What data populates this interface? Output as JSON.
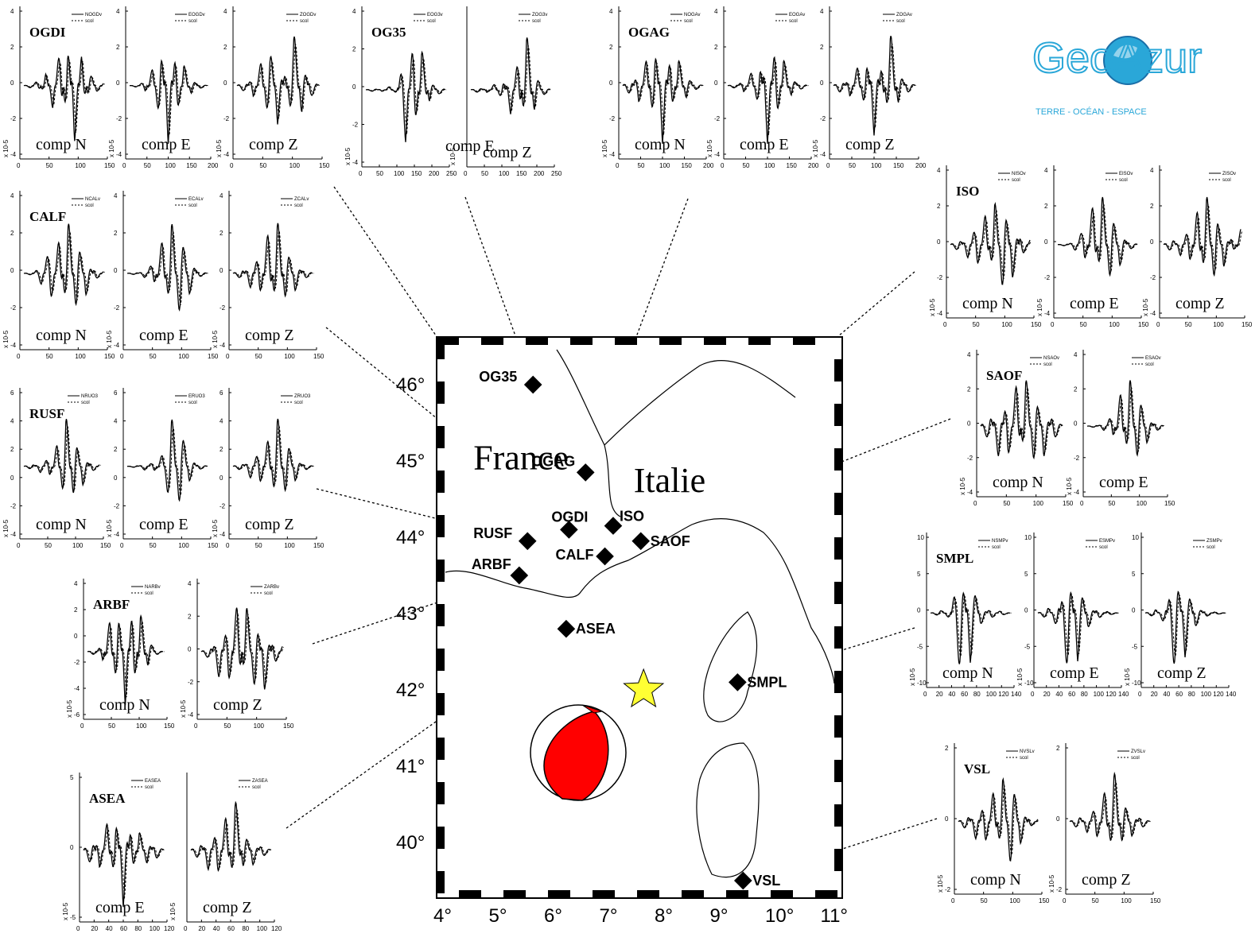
{
  "logo": {
    "name": "GeoAzur",
    "tagline": "TERRE - OCÉAN - ESPACE",
    "colors": {
      "primary": "#2aa7d8",
      "dark": "#1a6fa8"
    }
  },
  "map": {
    "lat_ticks": [
      "40°",
      "41°",
      "42°",
      "43°",
      "44°",
      "45°",
      "46°"
    ],
    "lon_ticks": [
      "4°",
      "5°",
      "6°",
      "7°",
      "8°",
      "9°",
      "10°",
      "11°"
    ],
    "countries": [
      {
        "name": "France",
        "lon": 5.6,
        "lat": 45.1
      },
      {
        "name": "Italie",
        "lon": 8.5,
        "lat": 44.8
      }
    ],
    "stations": [
      {
        "name": "OG35",
        "lon": 5.6,
        "lat": 46.0
      },
      {
        "name": "OGAG",
        "lon": 6.55,
        "lat": 44.85
      },
      {
        "name": "OGDI",
        "lon": 6.25,
        "lat": 44.1
      },
      {
        "name": "ISO",
        "lon": 7.05,
        "lat": 44.15
      },
      {
        "name": "SAOF",
        "lon": 7.55,
        "lat": 43.95
      },
      {
        "name": "RUSF",
        "lon": 5.5,
        "lat": 43.95
      },
      {
        "name": "CALF",
        "lon": 6.9,
        "lat": 43.75
      },
      {
        "name": "ARBF",
        "lon": 5.35,
        "lat": 43.5
      },
      {
        "name": "ASEA",
        "lon": 6.2,
        "lat": 42.8
      },
      {
        "name": "SMPL",
        "lon": 9.3,
        "lat": 42.1
      },
      {
        "name": "VSL",
        "lon": 9.4,
        "lat": 39.5
      }
    ],
    "epicenter": {
      "lon": 7.6,
      "lat": 42.0,
      "color": "#ffff33"
    },
    "focal_mechanism_color": "#ff0000"
  },
  "legend": {
    "observed_suffix": "v",
    "synthetic": "scol"
  },
  "y_axis_unit": "x 10-5",
  "panels": [
    {
      "station": "OGDI",
      "comp": "comp N",
      "legend": "NOGDv",
      "xticks": [
        "0",
        "50",
        "100",
        "150"
      ],
      "yticks": [
        "-4",
        "-2",
        "0",
        "2",
        "4"
      ],
      "y": [
        0,
        0.1,
        -0.3,
        0.6,
        -1,
        1.8,
        -2.2,
        2.5,
        -1.5,
        0.8,
        -0.3,
        0.1
      ]
    },
    {
      "station": "",
      "comp": "comp E",
      "legend": "EOGDv",
      "xticks": [
        "0",
        "50",
        "100",
        "150",
        "200"
      ],
      "yticks": [
        "-4",
        "-2",
        "0",
        "2",
        "4"
      ],
      "y": [
        0,
        0.1,
        -0.4,
        1.2,
        -3,
        3.8,
        -2.8,
        1.5,
        -0.6,
        0.2,
        0
      ]
    },
    {
      "station": "",
      "comp": "comp Z",
      "legend": "ZOGDv",
      "xticks": [
        "0",
        "50",
        "100",
        "150"
      ],
      "yticks": [
        "-4",
        "-2",
        "0",
        "2",
        "4"
      ],
      "y": [
        0,
        0.2,
        -0.4,
        0.8,
        -1.5,
        1.2,
        -0.6,
        1.8,
        -1,
        0.4,
        0
      ]
    },
    {
      "station": "OG35",
      "comp": "",
      "legend": "EOG3v",
      "xticks": [
        "0",
        "50",
        "100",
        "150",
        "200",
        "250"
      ],
      "yticks": [
        "-4",
        "-2",
        "0",
        "2",
        "4"
      ],
      "y": [
        0,
        0.1,
        -0.1,
        0.2,
        -0.3,
        3,
        -3.5,
        2.5,
        -0.8,
        0.3,
        0
      ]
    },
    {
      "station": "",
      "comp": "comp E",
      "legend": "",
      "xticks": [],
      "yticks": [],
      "y": []
    },
    {
      "station": "",
      "comp": "comp Z",
      "legend": "ZOG3v",
      "xticks": [
        "0",
        "50",
        "100",
        "150",
        "200",
        "250"
      ],
      "yticks": [],
      "y": [
        0,
        0.05,
        -0.05,
        0.1,
        -0.2,
        0.4,
        -0.6,
        1,
        -0.4,
        0.1,
        0
      ]
    },
    {
      "station": "OGAG",
      "comp": "comp N",
      "legend": "NOGAv",
      "xticks": [
        "0",
        "50",
        "100",
        "150",
        "200"
      ],
      "yticks": [
        "-4",
        "-2",
        "0",
        "2",
        "4"
      ],
      "y": [
        0,
        0.2,
        -0.4,
        0.6,
        -1,
        1.2,
        -0.8,
        0.6,
        -0.3,
        0.1,
        0
      ]
    },
    {
      "station": "",
      "comp": "comp E",
      "legend": "EOGAv",
      "xticks": [
        "0",
        "50",
        "100",
        "150",
        "200"
      ],
      "yticks": [
        "-4",
        "-2",
        "0",
        "2",
        "4"
      ],
      "y": [
        0,
        0.2,
        -0.5,
        1,
        -2,
        4,
        -3.5,
        2,
        -0.8,
        0.3,
        0
      ]
    },
    {
      "station": "",
      "comp": "comp Z",
      "legend": "ZOGAv",
      "xticks": [
        "0",
        "50",
        "100",
        "150",
        "200"
      ],
      "yticks": [
        "-4",
        "-2",
        "0",
        "2",
        "4"
      ],
      "y": [
        0,
        0.2,
        -0.3,
        0.5,
        -0.8,
        1.2,
        -0.7,
        1.4,
        -0.5,
        0.2,
        0
      ]
    },
    {
      "station": "CALF",
      "comp": "comp N",
      "legend": "NCALv",
      "xticks": [
        "0",
        "50",
        "100",
        "150"
      ],
      "yticks": [
        "-4",
        "-2",
        "0",
        "2",
        "4"
      ],
      "y": [
        0,
        0.1,
        -0.6,
        1.8,
        -2,
        3.2,
        -2.5,
        1.2,
        -0.4,
        0.1
      ]
    },
    {
      "station": "",
      "comp": "comp E",
      "legend": "ECALv",
      "xticks": [
        "0",
        "50",
        "100",
        "150"
      ],
      "yticks": [
        "-4",
        "-2",
        "0",
        "2",
        "4"
      ],
      "y": [
        0,
        0.1,
        -0.3,
        1,
        -2.5,
        4.2,
        -3.8,
        1.5,
        -0.3,
        0
      ]
    },
    {
      "station": "",
      "comp": "comp Z",
      "legend": "ZCALv",
      "xticks": [
        "0",
        "50",
        "100",
        "150"
      ],
      "yticks": [
        "-4",
        "-2",
        "0",
        "2",
        "4"
      ],
      "y": [
        0,
        0.2,
        -0.5,
        0.9,
        -1.5,
        2,
        -1.2,
        0.6,
        -0.2,
        0
      ]
    },
    {
      "station": "RUSF",
      "comp": "comp N",
      "legend": "NRUO3",
      "xticks": [
        "0",
        "50",
        "100",
        "150"
      ],
      "yticks": [
        "-4",
        "-2",
        "0",
        "2",
        "4",
        "6"
      ],
      "y": [
        0,
        0.2,
        -0.4,
        0.8,
        -1.5,
        3.5,
        -2.5,
        1.2,
        -0.4,
        0.1
      ]
    },
    {
      "station": "",
      "comp": "comp E",
      "legend": "ERUO3",
      "xticks": [
        "0",
        "50",
        "100",
        "150"
      ],
      "yticks": [
        "-4",
        "-2",
        "0",
        "2",
        "4",
        "6"
      ],
      "y": [
        0,
        0.1,
        -0.3,
        0.5,
        -1,
        4.5,
        -4,
        1.2,
        -0.3,
        0
      ]
    },
    {
      "station": "",
      "comp": "comp Z",
      "legend": "ZRUO3",
      "xticks": [
        "0",
        "50",
        "100",
        "150"
      ],
      "yticks": [
        "-4",
        "-2",
        "0",
        "2",
        "4",
        "6"
      ],
      "y": [
        0,
        0.3,
        -0.8,
        1.5,
        -2,
        3.8,
        -2.5,
        1,
        -0.3,
        0
      ]
    },
    {
      "station": "ARBF",
      "comp": "comp N",
      "legend": "NARBv",
      "xticks": [
        "0",
        "50",
        "100",
        "150"
      ],
      "yticks": [
        "-6",
        "-4",
        "-2",
        "0",
        "2",
        "4"
      ],
      "y": [
        0,
        0.2,
        -0.6,
        2,
        -3,
        3.2,
        -3.2,
        2.5,
        -1,
        0.2,
        0
      ]
    },
    {
      "station": "",
      "comp": "comp Z",
      "legend": "ZARBv",
      "xticks": [
        "0",
        "50",
        "100",
        "150"
      ],
      "yticks": [
        "-4",
        "-2",
        "0",
        "2",
        "4"
      ],
      "y": [
        0,
        0.3,
        -1,
        1.5,
        -2,
        2,
        -1.8,
        1.5,
        -0.6,
        0.2
      ]
    },
    {
      "station": "ASEA",
      "comp": "comp E",
      "legend": "EASEA",
      "xticks": [
        "0",
        "20",
        "40",
        "60",
        "80",
        "100",
        "120"
      ],
      "yticks": [
        "-5",
        "0",
        "5"
      ],
      "y": [
        0,
        1.5,
        -2,
        3,
        -4,
        5.5,
        -3,
        2,
        -1.5,
        1,
        0
      ]
    },
    {
      "station": "",
      "comp": "comp Z",
      "legend": "ZASEA",
      "xticks": [
        "0",
        "20",
        "40",
        "60",
        "80",
        "100",
        "120"
      ],
      "yticks": [],
      "y": [
        0,
        0.4,
        -0.8,
        1.2,
        -1.5,
        2.2,
        -1,
        0.6,
        -0.3,
        0
      ]
    },
    {
      "station": "ISO",
      "comp": "comp N",
      "legend": "NISOv",
      "xticks": [
        "0",
        "50",
        "100",
        "150"
      ],
      "yticks": [
        "-4",
        "-2",
        "0",
        "2",
        "4"
      ],
      "y": [
        0,
        0.3,
        -0.6,
        1.2,
        -1.5,
        2.2,
        -2.5,
        1.5,
        -0.6,
        0.2
      ]
    },
    {
      "station": "",
      "comp": "comp E",
      "legend": "EISOv",
      "xticks": [
        "0",
        "50",
        "100",
        "150"
      ],
      "yticks": [
        "-4",
        "-2",
        "0",
        "2",
        "4"
      ],
      "y": [
        0,
        0.1,
        -0.4,
        1.5,
        -3,
        4,
        -3.2,
        1.5,
        -0.4,
        0
      ]
    },
    {
      "station": "",
      "comp": "comp Z",
      "legend": "ZISOv",
      "xticks": [
        "0",
        "50",
        "100",
        "150"
      ],
      "yticks": [
        "-4",
        "-2",
        "0",
        "2",
        "4"
      ],
      "y": [
        0,
        0.2,
        -0.3,
        0.6,
        -1,
        1.5,
        -1.2,
        0.6,
        -0.3,
        0.4
      ]
    },
    {
      "station": "SAOF",
      "comp": "comp N",
      "legend": "NSAOv",
      "xticks": [
        "0",
        "50",
        "100",
        "150"
      ],
      "yticks": [
        "-4",
        "-2",
        "0",
        "2",
        "4"
      ],
      "y": [
        0,
        0.4,
        -0.8,
        1,
        -1.2,
        1.4,
        -1.2,
        0.8,
        -0.4,
        0
      ]
    },
    {
      "station": "",
      "comp": "comp E",
      "legend": "ESAOv",
      "xticks": [
        "0",
        "50",
        "100",
        "150"
      ],
      "yticks": [
        "-4",
        "-2",
        "0",
        "2",
        "4"
      ],
      "y": [
        0,
        0.1,
        -0.3,
        1,
        -2.5,
        3.8,
        -3,
        1.2,
        -0.4,
        0
      ]
    },
    {
      "station": "SMPL",
      "comp": "comp N",
      "legend": "NSMPv",
      "xticks": [
        "0",
        "20",
        "40",
        "60",
        "80",
        "100",
        "120",
        "140"
      ],
      "yticks": [
        "-10",
        "-5",
        "0",
        "5",
        "10"
      ],
      "y": [
        0,
        0.5,
        -1,
        9.5,
        -8,
        2,
        -1,
        0.4,
        0
      ]
    },
    {
      "station": "",
      "comp": "comp E",
      "legend": "ESMPv",
      "xticks": [
        "0",
        "20",
        "40",
        "60",
        "80",
        "100",
        "120",
        "140"
      ],
      "yticks": [
        "-10",
        "-5",
        "0",
        "5",
        "10"
      ],
      "y": [
        0,
        0.6,
        -1.5,
        5.5,
        -4.5,
        1.5,
        -0.6,
        0.2,
        0
      ]
    },
    {
      "station": "",
      "comp": "comp Z",
      "legend": "ZSMPv",
      "xticks": [
        "0",
        "20",
        "40",
        "60",
        "80",
        "100",
        "120",
        "140"
      ],
      "yticks": [
        "-10",
        "-5",
        "0",
        "5",
        "10"
      ],
      "y": [
        0,
        0.3,
        -0.8,
        4,
        -3,
        1,
        -0.3,
        0.1,
        0
      ]
    },
    {
      "station": "VSL",
      "comp": "comp N",
      "legend": "NVSLv",
      "xticks": [
        "0",
        "50",
        "100",
        "150"
      ],
      "yticks": [
        "-2",
        "0",
        "2"
      ],
      "y": [
        0,
        0.4,
        -0.8,
        1.2,
        -1.5,
        2.3,
        -2.5,
        1,
        -0.3,
        0.1
      ]
    },
    {
      "station": "",
      "comp": "comp Z",
      "legend": "ZVSLv",
      "xticks": [
        "0",
        "50",
        "100",
        "150"
      ],
      "yticks": [
        "-2",
        "0",
        "2"
      ],
      "y": [
        0,
        0.2,
        -0.3,
        0.6,
        -0.9,
        1.5,
        -0.8,
        0.4,
        -0.2,
        0
      ]
    }
  ]
}
